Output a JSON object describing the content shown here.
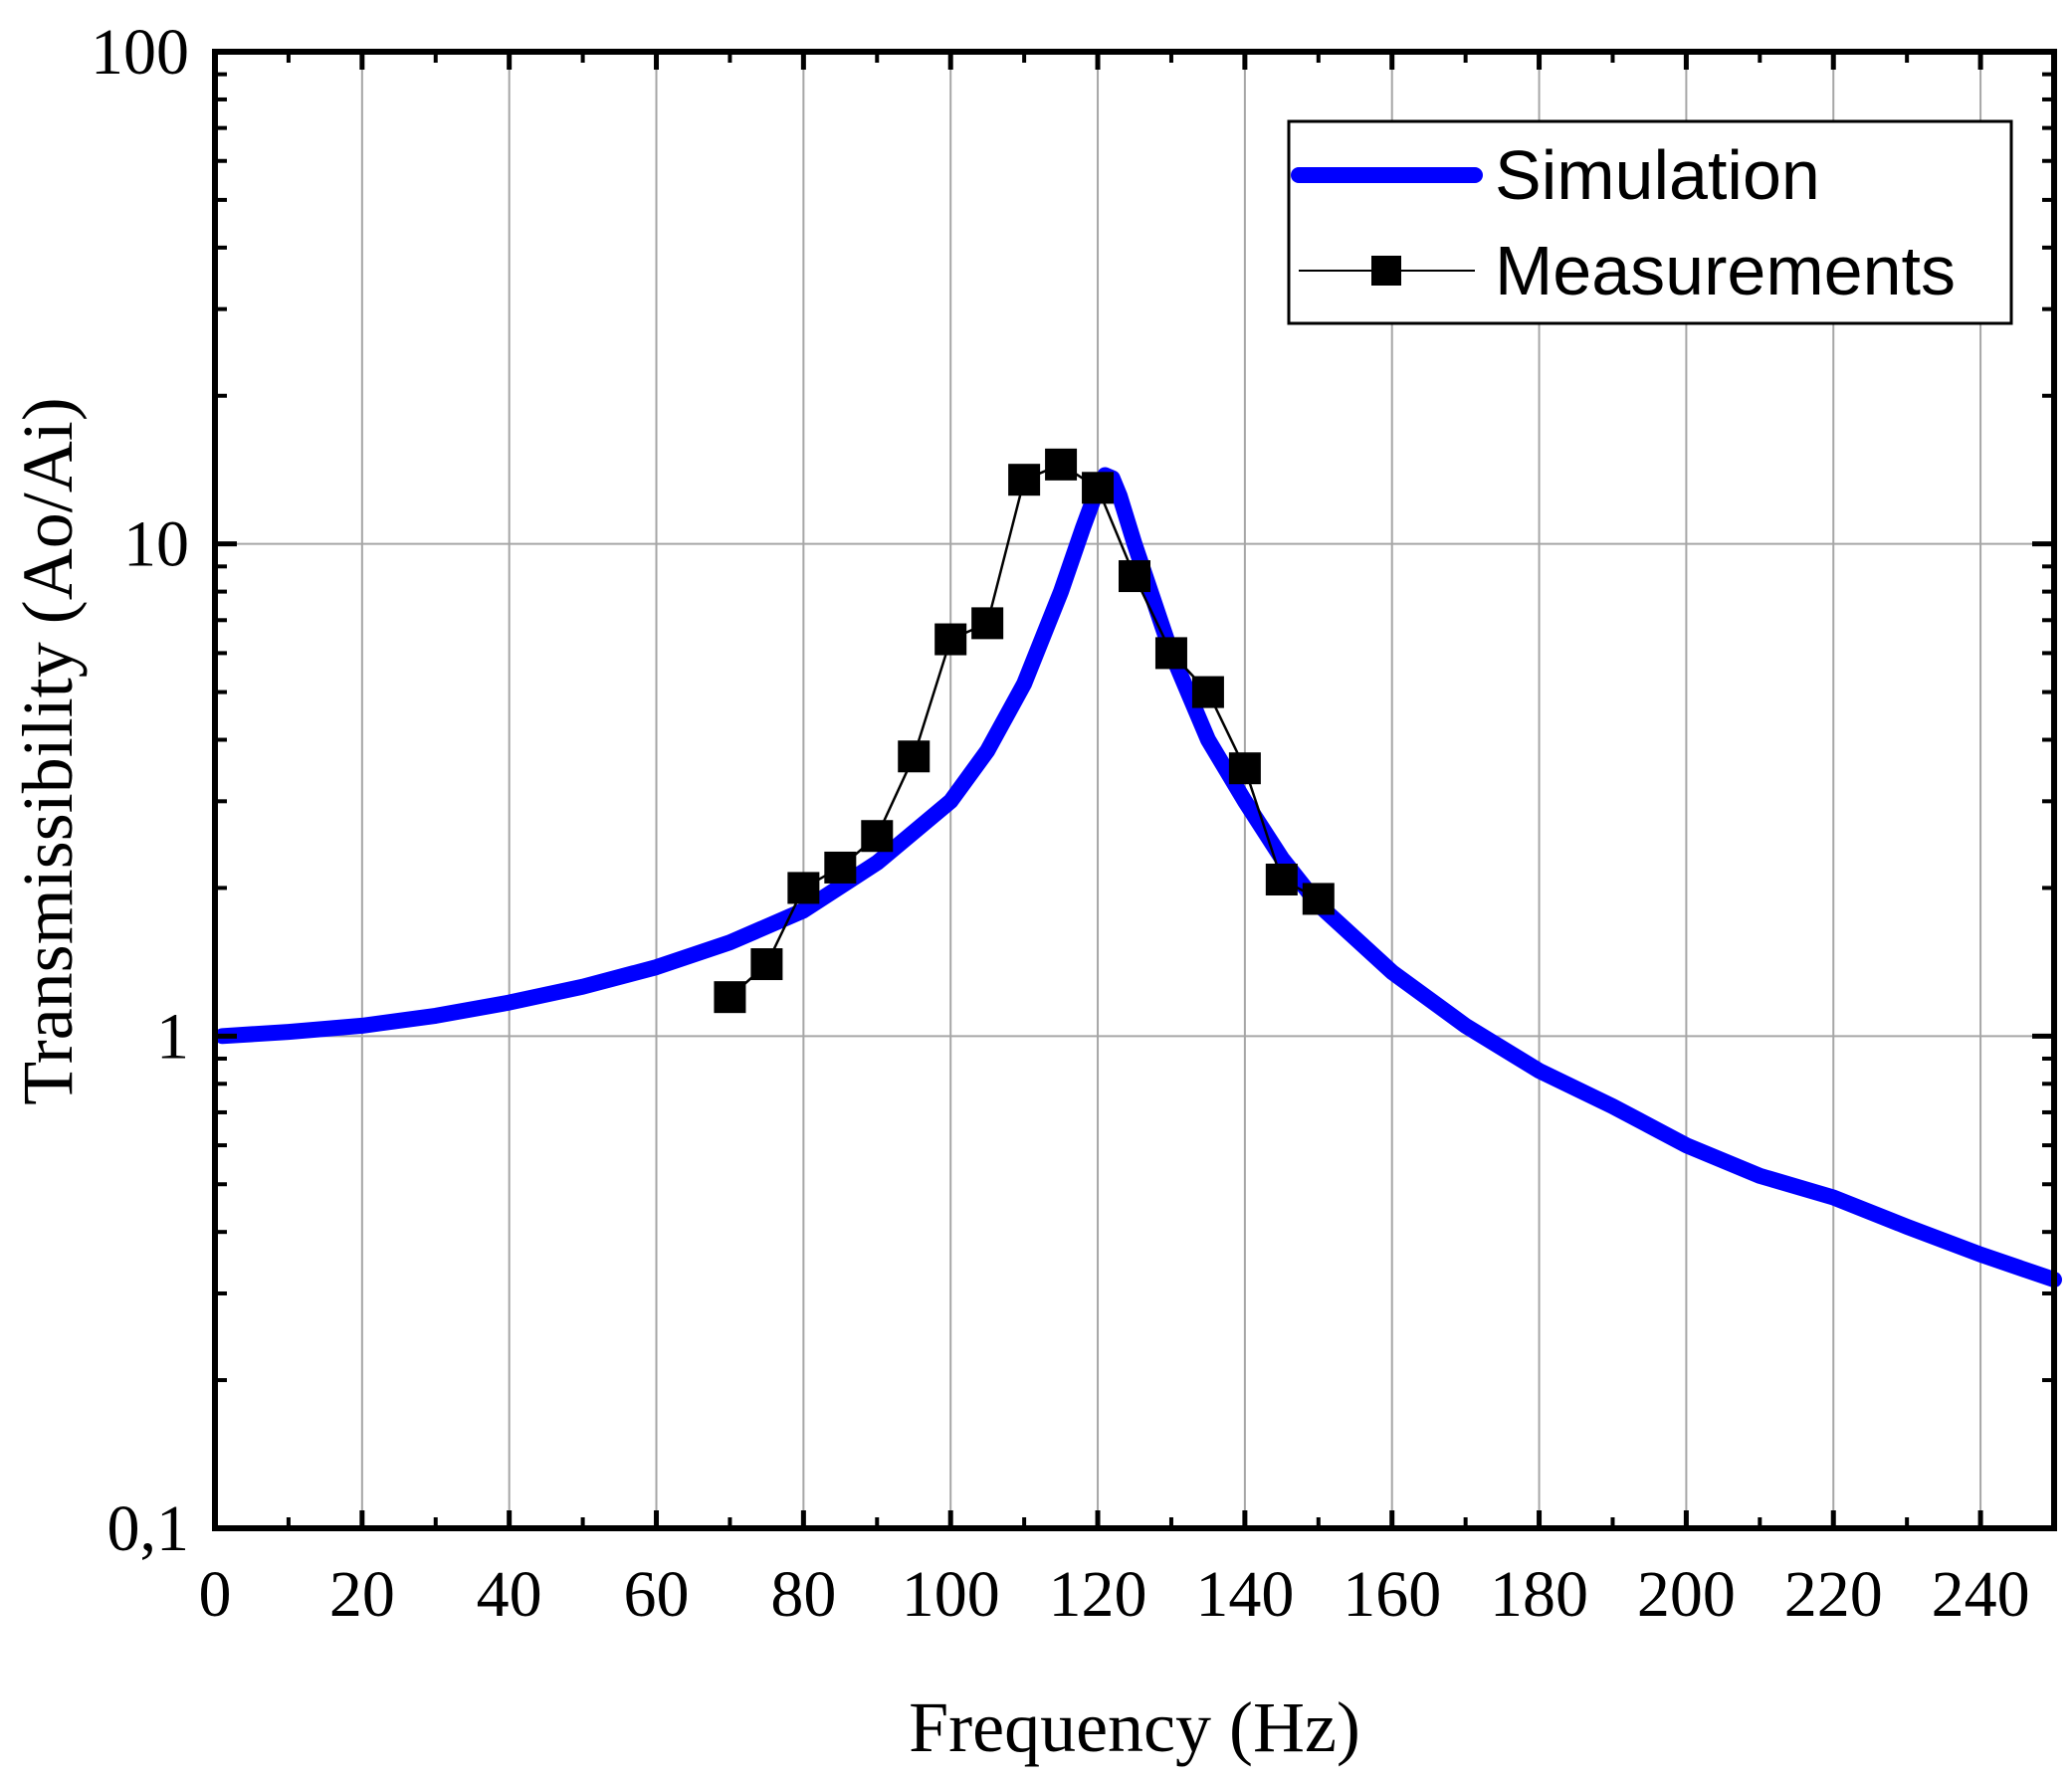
{
  "chart_data": {
    "type": "line",
    "title": "",
    "xlabel": "Frequency (Hz)",
    "ylabel": "Transmissibility (Ao/Ai)",
    "xlim": [
      0,
      250
    ],
    "ylim": [
      0.1,
      100
    ],
    "yscale": "log",
    "grid": true,
    "legend_position": "top-right",
    "x_ticks": [
      0,
      20,
      40,
      60,
      80,
      100,
      120,
      140,
      160,
      180,
      200,
      220,
      240
    ],
    "x_tick_labels": [
      "0",
      "20",
      "40",
      "60",
      "80",
      "100",
      "120",
      "140",
      "160",
      "180",
      "200",
      "220",
      "240"
    ],
    "y_ticks": [
      0.1,
      1,
      10,
      100
    ],
    "y_tick_labels": [
      "0,1",
      "1",
      "10",
      "100"
    ],
    "series": [
      {
        "name": "Simulation",
        "color": "#0000ff",
        "style": "thick-line",
        "x": [
          1,
          10,
          20,
          30,
          40,
          50,
          60,
          70,
          80,
          90,
          100,
          105,
          110,
          115,
          118,
          120,
          121,
          122,
          123,
          125,
          130,
          135,
          140,
          145,
          150,
          160,
          170,
          180,
          190,
          200,
          210,
          220,
          230,
          240,
          250
        ],
        "y": [
          1.0,
          1.02,
          1.05,
          1.1,
          1.17,
          1.26,
          1.38,
          1.55,
          1.8,
          2.25,
          3.0,
          3.8,
          5.2,
          8.0,
          10.8,
          13.0,
          13.8,
          13.6,
          12.5,
          10.0,
          6.0,
          4.0,
          3.0,
          2.3,
          1.85,
          1.35,
          1.05,
          0.85,
          0.72,
          0.6,
          0.52,
          0.47,
          0.41,
          0.36,
          0.32
        ]
      },
      {
        "name": "Measurements",
        "color": "#000000",
        "style": "line-square-markers",
        "x": [
          70,
          75,
          80,
          85,
          90,
          95,
          100,
          105,
          110,
          115,
          120,
          125,
          130,
          135,
          140,
          145,
          150
        ],
        "y": [
          1.2,
          1.4,
          2.0,
          2.2,
          2.55,
          3.7,
          6.4,
          6.9,
          13.5,
          14.5,
          13.0,
          8.6,
          6.0,
          5.0,
          3.5,
          2.08,
          1.9
        ]
      }
    ]
  }
}
